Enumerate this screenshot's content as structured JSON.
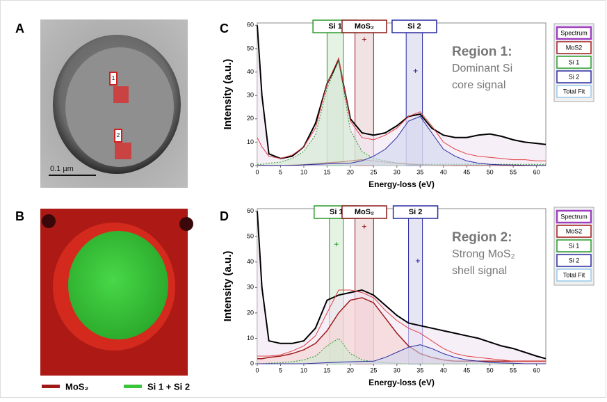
{
  "panel_labels": [
    "A",
    "B",
    "C",
    "D"
  ],
  "panel_a": {
    "roi_labels": [
      "1",
      "2"
    ],
    "scale_bar": "0.1 µm"
  },
  "panel_b": {
    "legend": [
      {
        "name": "MoS₂",
        "color": "#a01818"
      },
      {
        "name": "Si 1 + Si 2",
        "color": "#3cc43c"
      }
    ]
  },
  "chart_data": [
    {
      "type": "line",
      "region_title": "Region 1:",
      "annotation": [
        "Dominant Si",
        "core signal"
      ],
      "xlabel": "Energy-loss (eV)",
      "ylabel": "Intensity (a.u.)",
      "x": [
        0,
        1,
        2.5,
        5,
        7.5,
        10,
        12.5,
        15,
        17.5,
        20,
        22.5,
        25,
        27.5,
        30,
        32.5,
        35,
        37.5,
        40,
        42.5,
        45,
        47.5,
        50,
        52.5,
        55,
        57.5,
        60,
        62
      ],
      "xlim": [
        0,
        62
      ],
      "ylim": [
        0,
        61
      ],
      "xticks": [
        0,
        5,
        10,
        15,
        20,
        25,
        30,
        35,
        40,
        45,
        50,
        55,
        60
      ],
      "yticks": [
        0,
        10,
        20,
        30,
        40,
        50,
        60
      ],
      "series": [
        {
          "name": "Spectrum",
          "color": "#000000",
          "legend_color": "#a040c0",
          "fill": "#f1e4f3",
          "width": 2,
          "values": [
            60,
            30,
            5,
            3,
            4,
            8,
            18,
            35,
            45,
            20,
            14,
            13,
            14,
            17,
            21,
            22,
            16,
            13,
            12,
            12,
            13,
            13.5,
            12.5,
            11,
            10,
            9.5,
            9
          ]
        },
        {
          "name": "MoS2",
          "color": "#a01818",
          "legend_color": "#a01818",
          "fill": "#f3d0d0",
          "width": 1.2,
          "values": [
            0,
            0,
            0,
            0,
            0.2,
            0.4,
            0.8,
            1.2,
            1.5,
            2,
            2.5,
            2,
            1.5,
            1,
            0.6,
            0.4,
            0.2,
            0.1,
            0,
            0,
            0,
            0,
            0,
            0,
            0,
            0,
            0
          ]
        },
        {
          "name": "Si 1",
          "color": "#2a9a2a",
          "legend_color": "#2a9a2a",
          "fill": "#cfe9cf",
          "width": 1,
          "dash": "2,2",
          "values": [
            0.5,
            0.5,
            1,
            1.5,
            3,
            6,
            13,
            33,
            45,
            15,
            6,
            3,
            2,
            1,
            0.5,
            0.5,
            0.5,
            0.5,
            0.5,
            0.5,
            0.5,
            0.5,
            0.5,
            0.5,
            0.5,
            0.5,
            0.5
          ]
        },
        {
          "name": "Si 2",
          "color": "#2a2aa0",
          "legend_color": "#2a2aa0",
          "fill": "#cfd6ef",
          "width": 1,
          "values": [
            0,
            0,
            0,
            0,
            0,
            0.3,
            0.5,
            0.7,
            0.9,
            1,
            2,
            4,
            7,
            12,
            19,
            21,
            14,
            7,
            4,
            2,
            1,
            0.5,
            0.3,
            0.2,
            0.1,
            0,
            0
          ]
        },
        {
          "name": "Total Fit",
          "color": "#e04040",
          "legend_color": "#9cc8e8",
          "width": 1,
          "values": [
            12,
            8,
            4,
            3,
            4.5,
            8,
            16,
            35,
            46,
            19,
            12,
            11,
            13,
            16,
            21,
            23,
            17,
            10,
            7,
            5,
            4,
            3.5,
            3,
            2.5,
            2.5,
            2,
            2
          ]
        }
      ],
      "windows": [
        {
          "label": "Si 1",
          "color": "#2a9a2a",
          "range": [
            15,
            18.5
          ]
        },
        {
          "label": "MoS₂",
          "color": "#8a1818",
          "range": [
            21,
            25
          ],
          "marker": [
            23,
            54
          ]
        },
        {
          "label": "Si 2",
          "color": "#2a2aa0",
          "range": [
            32,
            35.5
          ],
          "marker": [
            34,
            40.5
          ]
        }
      ]
    },
    {
      "type": "line",
      "region_title": "Region 2:",
      "annotation": [
        "Strong MoS₂",
        "shell signal"
      ],
      "xlabel": "Energy-loss (eV)",
      "ylabel": "Intensity (a.u.)",
      "x": [
        0,
        1,
        2.5,
        5,
        7.5,
        10,
        12.5,
        15,
        17.5,
        20,
        22.5,
        25,
        27.5,
        30,
        32.5,
        35,
        37.5,
        40,
        42.5,
        45,
        47.5,
        50,
        52.5,
        55,
        57.5,
        60,
        62
      ],
      "xlim": [
        0,
        62
      ],
      "ylim": [
        0,
        61
      ],
      "xticks": [
        0,
        5,
        10,
        15,
        20,
        25,
        30,
        35,
        40,
        45,
        50,
        55,
        60
      ],
      "yticks": [
        0,
        10,
        20,
        30,
        40,
        50,
        60
      ],
      "series": [
        {
          "name": "Spectrum",
          "color": "#000000",
          "legend_color": "#a040c0",
          "fill": "#f1e4f3",
          "width": 2,
          "values": [
            60,
            30,
            9,
            8,
            8,
            9,
            14,
            25,
            27,
            28,
            29,
            27,
            23,
            19,
            16,
            15,
            14,
            13,
            12,
            11,
            10,
            8.5,
            7,
            6,
            4.5,
            3,
            2
          ]
        },
        {
          "name": "MoS2",
          "color": "#a01818",
          "legend_color": "#a01818",
          "fill": "#f3d0d0",
          "width": 1.5,
          "values": [
            2,
            2,
            2.5,
            3,
            4,
            5.5,
            8,
            13,
            20,
            25,
            26,
            24,
            18,
            12,
            7,
            4,
            2.5,
            1.5,
            1,
            1,
            1,
            1,
            1,
            1,
            1,
            1,
            1
          ]
        },
        {
          "name": "Si 1",
          "color": "#2a9a2a",
          "legend_color": "#2a9a2a",
          "fill": "#cfe9cf",
          "width": 1,
          "dash": "2,2",
          "values": [
            0,
            0,
            0.2,
            0.4,
            0.8,
            1.5,
            3,
            7,
            10,
            4,
            1.5,
            0.8,
            0.4,
            0.2,
            0,
            0,
            0,
            0,
            0,
            0,
            0,
            0,
            0,
            0,
            0,
            0,
            0
          ]
        },
        {
          "name": "Si 2",
          "color": "#2a2aa0",
          "legend_color": "#2a2aa0",
          "fill": "#cfd6ef",
          "width": 1,
          "values": [
            0,
            0,
            0,
            0,
            0,
            0,
            0.2,
            0.4,
            0.6,
            0.8,
            0.9,
            1,
            2.5,
            4.5,
            6.5,
            7.5,
            6,
            4,
            2.5,
            1.5,
            1,
            0.5,
            0.3,
            0.2,
            0,
            0,
            0
          ]
        },
        {
          "name": "Total Fit",
          "color": "#e04040",
          "legend_color": "#9cc8e8",
          "width": 1,
          "values": [
            3,
            3,
            3,
            3.5,
            5,
            7,
            11,
            20,
            29,
            29,
            28,
            26,
            21,
            17,
            14,
            12,
            9,
            6,
            4,
            3,
            2.5,
            2,
            1.5,
            1,
            1,
            1,
            1
          ]
        }
      ],
      "windows": [
        {
          "label": "Si 1",
          "color": "#2a9a2a",
          "range": [
            15.5,
            18.5
          ],
          "marker": [
            17,
            47
          ]
        },
        {
          "label": "MoS₂",
          "color": "#8a1818",
          "range": [
            21,
            25
          ],
          "marker": [
            23,
            54
          ]
        },
        {
          "label": "Si 2",
          "color": "#2a2aa0",
          "range": [
            32.5,
            35.5
          ],
          "marker": [
            34.5,
            40.5
          ]
        }
      ]
    }
  ]
}
